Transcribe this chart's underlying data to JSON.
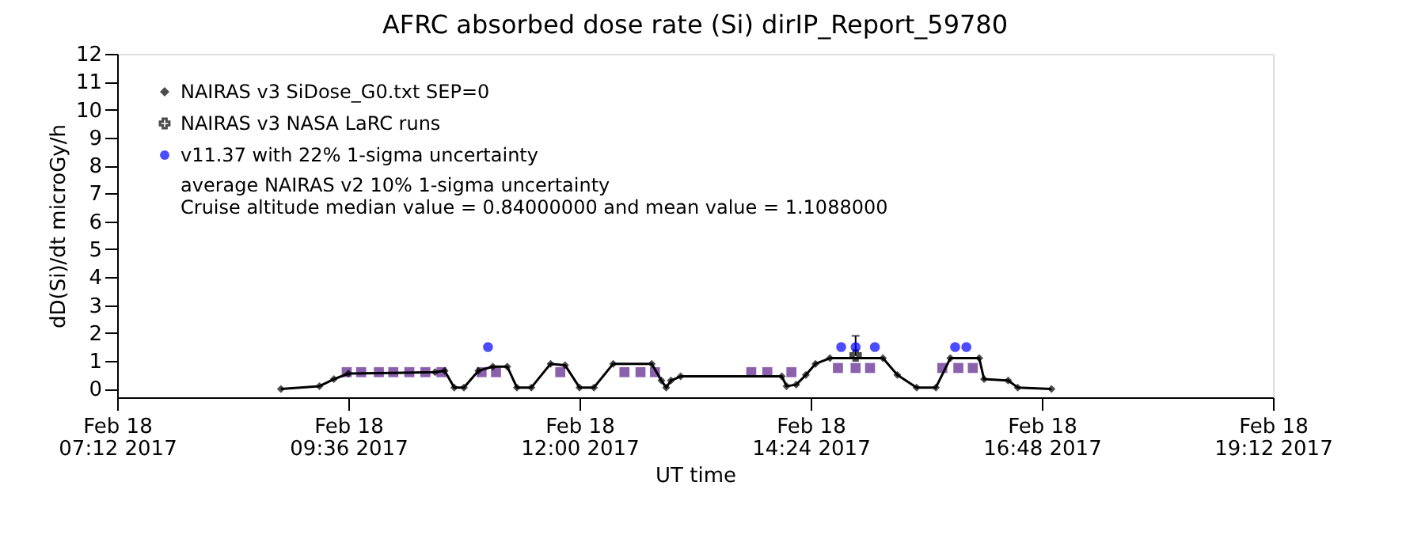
{
  "chart_data": {
    "type": "line",
    "title": "AFRC absorbed dose rate (Si) dirIP_Report_59780",
    "xlabel": "UT time",
    "ylabel": "dD(Si)/dt microGy/h",
    "xlim": [
      "2017-02-18T07:12",
      "2017-02-18T19:12"
    ],
    "xticks": [
      {
        "value": "2017-02-18T07:12",
        "label": "Feb 18\n07:12 2017"
      },
      {
        "value": "2017-02-18T09:36",
        "label": "Feb 18\n09:36 2017"
      },
      {
        "value": "2017-02-18T12:00",
        "label": "Feb 18\n12:00 2017"
      },
      {
        "value": "2017-02-18T14:24",
        "label": "Feb 18\n14:24 2017"
      },
      {
        "value": "2017-02-18T16:48",
        "label": "Feb 18\n16:48 2017"
      },
      {
        "value": "2017-02-18T19:12",
        "label": "Feb 18\n19:12 2017"
      }
    ],
    "ylim": [
      -0.3,
      12
    ],
    "yticks": [
      0,
      1,
      2,
      3,
      4,
      5,
      6,
      7,
      8,
      9,
      10,
      11,
      12
    ],
    "grid": false,
    "legend": "top left",
    "annotations": [
      "average NAIRAS v2 10% 1-sigma uncertainty",
      "Cruise altitude median value = 0.84000000 and mean value = 1.1088000"
    ],
    "series": [
      {
        "name": "NAIRAS v3 SiDose_G0.txt SEP=0",
        "marker": "diamond",
        "color": "#000000",
        "x": [
          "2017-02-18T08:54",
          "2017-02-18T09:18",
          "2017-02-18T09:27",
          "2017-02-18T09:36",
          "2017-02-18T10:30",
          "2017-02-18T10:36",
          "2017-02-18T10:42",
          "2017-02-18T10:48",
          "2017-02-18T10:57",
          "2017-02-18T11:06",
          "2017-02-18T11:15",
          "2017-02-18T11:21",
          "2017-02-18T11:30",
          "2017-02-18T11:42",
          "2017-02-18T11:51",
          "2017-02-18T12:00",
          "2017-02-18T12:09",
          "2017-02-18T12:21",
          "2017-02-18T12:45",
          "2017-02-18T12:51",
          "2017-02-18T12:54",
          "2017-02-18T12:57",
          "2017-02-18T13:03",
          "2017-02-18T14:06",
          "2017-02-18T14:09",
          "2017-02-18T14:15",
          "2017-02-18T14:21",
          "2017-02-18T14:27",
          "2017-02-18T14:36",
          "2017-02-18T15:09",
          "2017-02-18T15:18",
          "2017-02-18T15:30",
          "2017-02-18T15:42",
          "2017-02-18T15:51",
          "2017-02-18T16:09",
          "2017-02-18T16:12",
          "2017-02-18T16:27",
          "2017-02-18T16:33",
          "2017-02-18T16:54"
        ],
        "values": [
          0,
          0.1,
          0.35,
          0.55,
          0.6,
          0.65,
          0.05,
          0.05,
          0.65,
          0.8,
          0.8,
          0.05,
          0.05,
          0.9,
          0.85,
          0.05,
          0.05,
          0.9,
          0.9,
          0.3,
          0.05,
          0.3,
          0.45,
          0.45,
          0.1,
          0.15,
          0.5,
          0.9,
          1.1,
          1.1,
          0.5,
          0.05,
          0.05,
          1.1,
          1.1,
          0.35,
          0.3,
          0.05,
          0
        ]
      },
      {
        "name": "NAIRAS v3 NASA LaRC runs",
        "type": "scatter",
        "marker": "cross",
        "color": "#000000",
        "x": [
          "2017-02-18T14:52"
        ],
        "values": [
          1.2
        ],
        "errors": [
          [
            1.2,
            1.9
          ]
        ]
      },
      {
        "name": "v11.37 with 22% 1-sigma uncertainty",
        "type": "scatter",
        "marker": "circle",
        "color": "#0000ff",
        "x": [
          "2017-02-18T11:03",
          "2017-02-18T14:43",
          "2017-02-18T14:52",
          "2017-02-18T15:04",
          "2017-02-18T15:54",
          "2017-02-18T16:01"
        ],
        "values": [
          1.5,
          1.5,
          1.5,
          1.5,
          1.5,
          1.5
        ]
      },
      {
        "type": "scatter",
        "marker": "square",
        "color": "#5a1e8c",
        "x": [
          "2017-02-18T09:35",
          "2017-02-18T09:44",
          "2017-02-18T09:55",
          "2017-02-18T10:04",
          "2017-02-18T10:14",
          "2017-02-18T10:24",
          "2017-02-18T10:34",
          "2017-02-18T10:59",
          "2017-02-18T11:08",
          "2017-02-18T11:48",
          "2017-02-18T12:28",
          "2017-02-18T12:38",
          "2017-02-18T12:47",
          "2017-02-18T13:47",
          "2017-02-18T13:57",
          "2017-02-18T14:12",
          "2017-02-18T14:41",
          "2017-02-18T14:52",
          "2017-02-18T15:01",
          "2017-02-18T15:46",
          "2017-02-18T15:56",
          "2017-02-18T16:05"
        ],
        "values": [
          0.6,
          0.6,
          0.6,
          0.6,
          0.6,
          0.6,
          0.6,
          0.6,
          0.6,
          0.6,
          0.6,
          0.6,
          0.6,
          0.6,
          0.6,
          0.6,
          0.75,
          0.75,
          0.75,
          0.75,
          0.75,
          0.75
        ]
      }
    ]
  }
}
